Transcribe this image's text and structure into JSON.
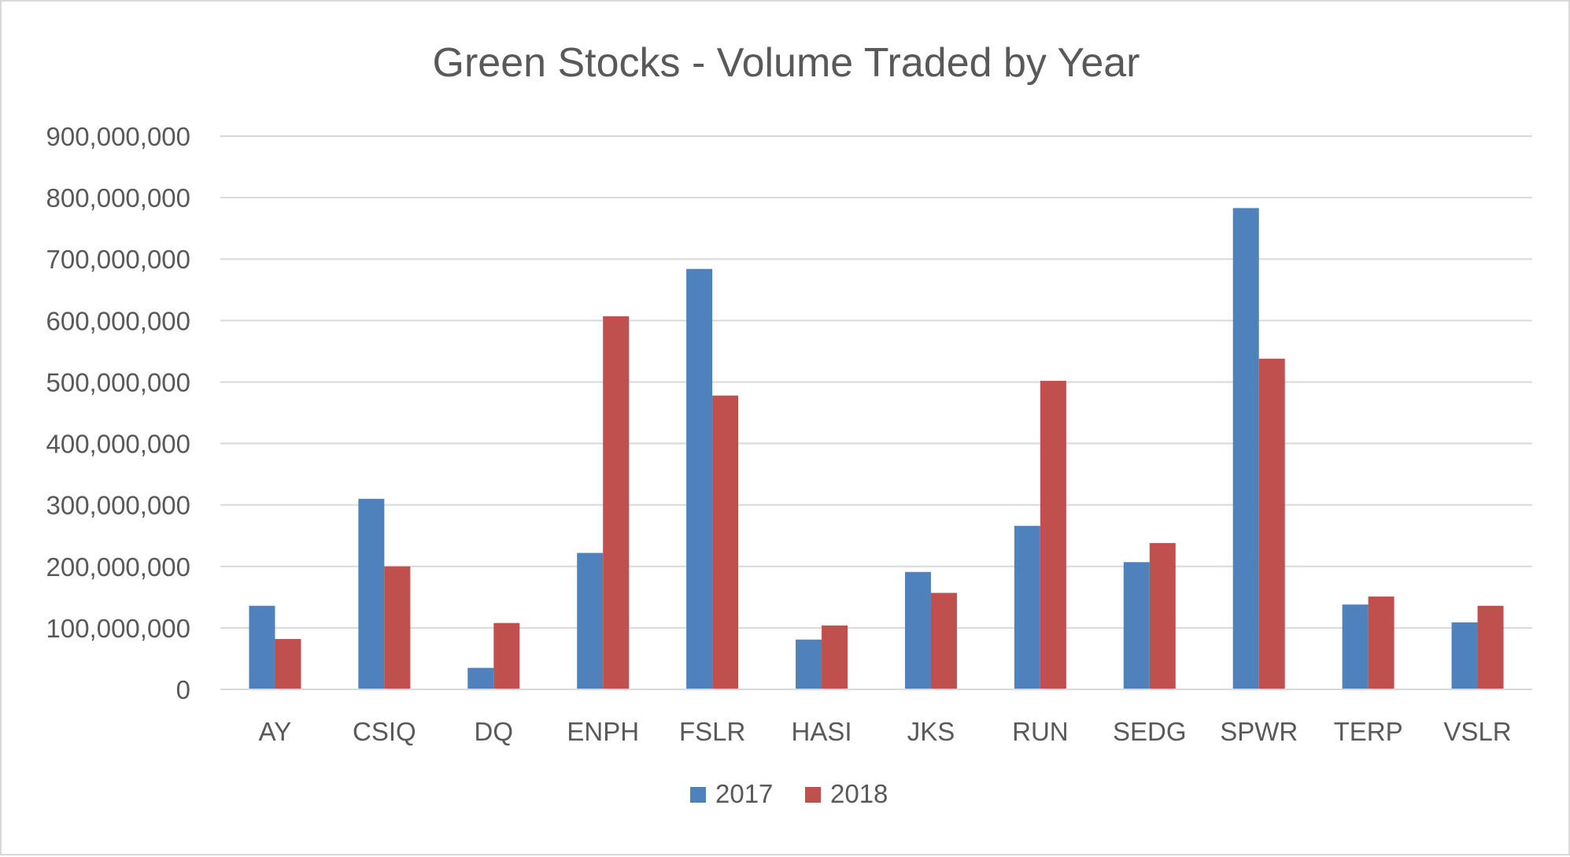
{
  "chart_data": {
    "type": "bar",
    "title": "Green Stocks - Volume Traded by Year",
    "xlabel": "",
    "ylabel": "",
    "categories": [
      "AY",
      "CSIQ",
      "DQ",
      "ENPH",
      "FSLR",
      "HASI",
      "JKS",
      "RUN",
      "SEDG",
      "SPWR",
      "TERP",
      "VSLR"
    ],
    "series": [
      {
        "name": "2017",
        "color": "#4f81bd",
        "values": [
          136000000,
          310000000,
          35000000,
          222000000,
          684000000,
          81000000,
          191000000,
          266000000,
          207000000,
          783000000,
          138000000,
          109000000
        ]
      },
      {
        "name": "2018",
        "color": "#c0504d",
        "values": [
          82000000,
          200000000,
          108000000,
          607000000,
          478000000,
          104000000,
          157000000,
          502000000,
          238000000,
          538000000,
          151000000,
          136000000
        ]
      }
    ],
    "ylim": [
      0,
      900000000
    ],
    "yticks": [
      0,
      100000000,
      200000000,
      300000000,
      400000000,
      500000000,
      600000000,
      700000000,
      800000000,
      900000000
    ],
    "ytick_labels": [
      "0",
      "100,000,000",
      "200,000,000",
      "300,000,000",
      "400,000,000",
      "500,000,000",
      "600,000,000",
      "700,000,000",
      "800,000,000",
      "900,000,000"
    ],
    "grid": true,
    "legend_position": "bottom-center"
  }
}
